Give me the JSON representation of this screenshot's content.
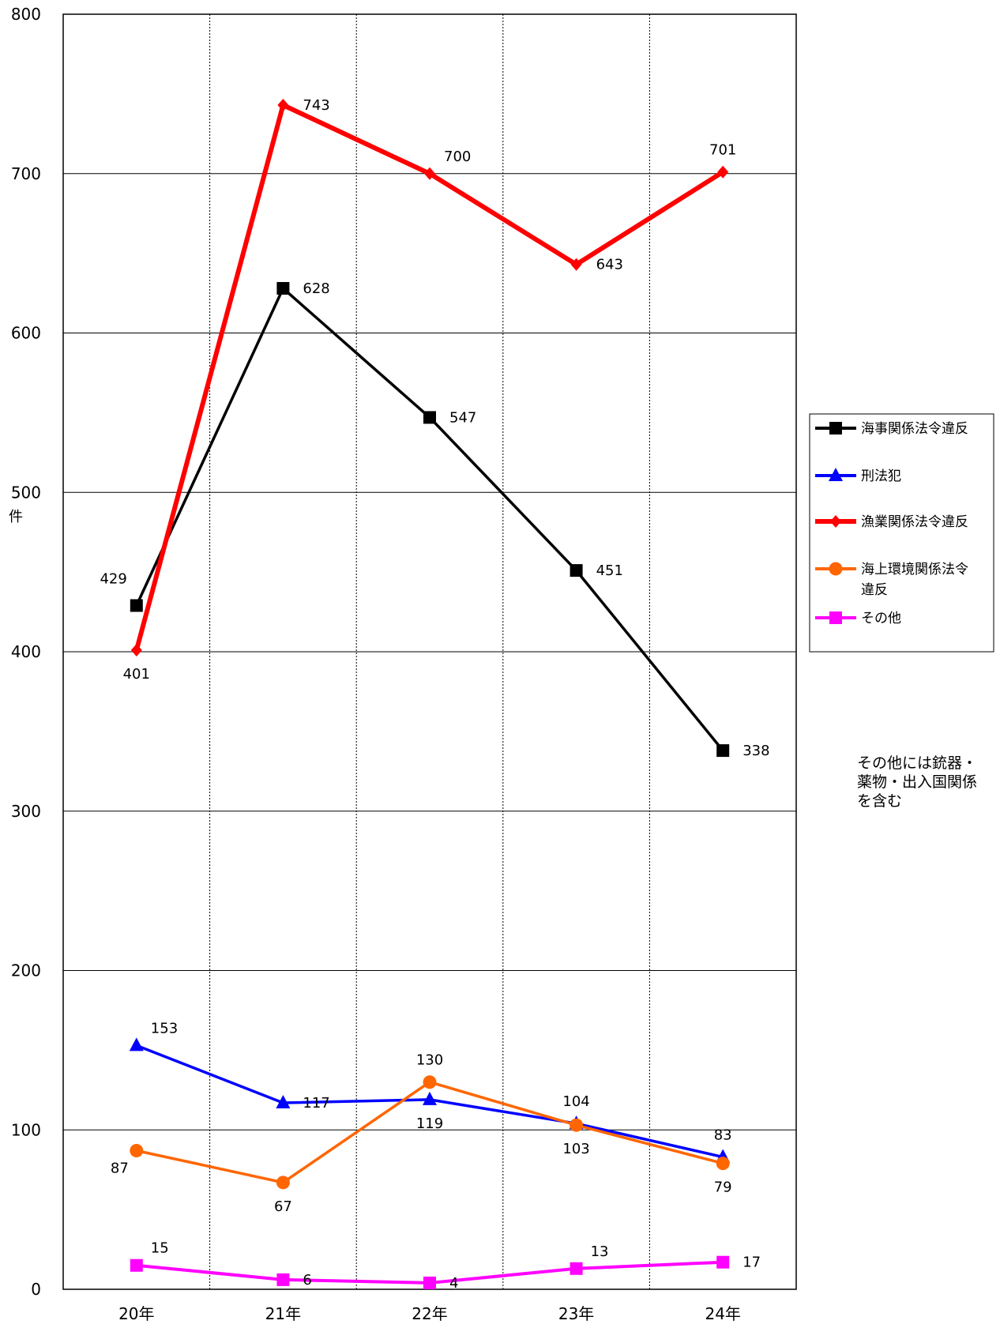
{
  "chart_data": {
    "type": "line",
    "title": "",
    "xlabel": "",
    "ylabel": "件",
    "categories": [
      "20年",
      "21年",
      "22年",
      "23年",
      "24年"
    ],
    "ylim": [
      0,
      800
    ],
    "yticks": [
      0,
      100,
      200,
      300,
      400,
      500,
      600,
      700,
      800
    ],
    "grid": true,
    "legend_position": "right",
    "series": [
      {
        "name": "海事関係法令違反",
        "values": [
          429,
          628,
          547,
          451,
          338
        ],
        "color": "#000000",
        "marker": "square",
        "label_pos": [
          "above-left",
          "right",
          "right",
          "right",
          "right"
        ]
      },
      {
        "name": "刑法犯",
        "values": [
          153,
          117,
          119,
          104,
          83
        ],
        "color": "#0000FF",
        "marker": "triangle",
        "label_pos": [
          "above-right",
          "right",
          "below",
          "above",
          "above"
        ]
      },
      {
        "name": "漁業関係法令違反",
        "values": [
          401,
          743,
          700,
          643,
          701
        ],
        "color": "#FF0000",
        "marker": "diamond",
        "label_pos": [
          "below",
          "right",
          "above-right",
          "right",
          "above"
        ]
      },
      {
        "name": "海上環境関係法令違反",
        "values": [
          87,
          67,
          130,
          103,
          79
        ],
        "color": "#FF6600",
        "marker": "circle",
        "label_pos": [
          "below-left",
          "below",
          "above",
          "below",
          "below"
        ]
      },
      {
        "name": "その他",
        "values": [
          15,
          6,
          4,
          13,
          17
        ],
        "color": "#FF00FF",
        "marker": "square",
        "label_pos": [
          "above-right",
          "right",
          "right",
          "above-right",
          "right"
        ]
      }
    ],
    "legend_labels": [
      [
        "海事関係法令違反"
      ],
      [
        "刑法犯"
      ],
      [
        "漁業関係法令違反"
      ],
      [
        "海上環境関係法令",
        "違反"
      ],
      [
        "その他"
      ]
    ],
    "note": [
      "その他には銃器・",
      "薬物・出入国関係",
      "を含む"
    ]
  }
}
